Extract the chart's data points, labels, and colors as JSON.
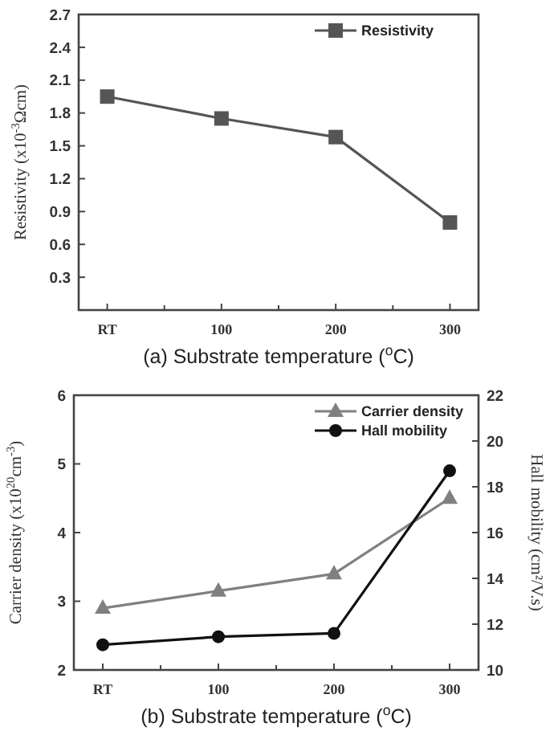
{
  "chart_data": [
    {
      "type": "line",
      "xlabel": "(a) Substrate temperature ($^{o}$C)",
      "ylabel": "Resistivity (x10$^{-3}$Ωcm)",
      "categories": [
        "RT",
        "100",
        "200",
        "300"
      ],
      "ylim": [
        0,
        2.7
      ],
      "yticks": [
        0.3,
        0.6,
        0.9,
        1.2,
        1.5,
        1.8,
        2.1,
        2.4,
        2.7
      ],
      "legend": "top right",
      "series": [
        {
          "name": "Resistivity",
          "color": "#555555",
          "marker": "square",
          "values": [
            1.95,
            1.75,
            1.58,
            0.8
          ]
        }
      ]
    },
    {
      "type": "line",
      "xlabel": "(b) Substrate temperature ($^{o}$C)",
      "ylabel": "Carrier density (x10$^{20}$cm$^{-3}$)",
      "y2label": "Hall mobility (cm²/V.s)",
      "categories": [
        "RT",
        "100",
        "200",
        "300"
      ],
      "ylim": [
        2,
        6
      ],
      "yticks": [
        2,
        3,
        4,
        5,
        6
      ],
      "y2lim": [
        10,
        22
      ],
      "y2ticks": [
        10,
        12,
        14,
        16,
        18,
        20,
        22
      ],
      "legend": "top right",
      "series": [
        {
          "name": "Carrier density",
          "color": "#808080",
          "marker": "triangle",
          "values": [
            2.9,
            3.15,
            3.4,
            4.5
          ]
        },
        {
          "name": "Hall mobility",
          "color": "#111111",
          "marker": "circle",
          "axis": "y2",
          "values": [
            11.1,
            11.45,
            11.6,
            18.7
          ]
        }
      ]
    }
  ]
}
